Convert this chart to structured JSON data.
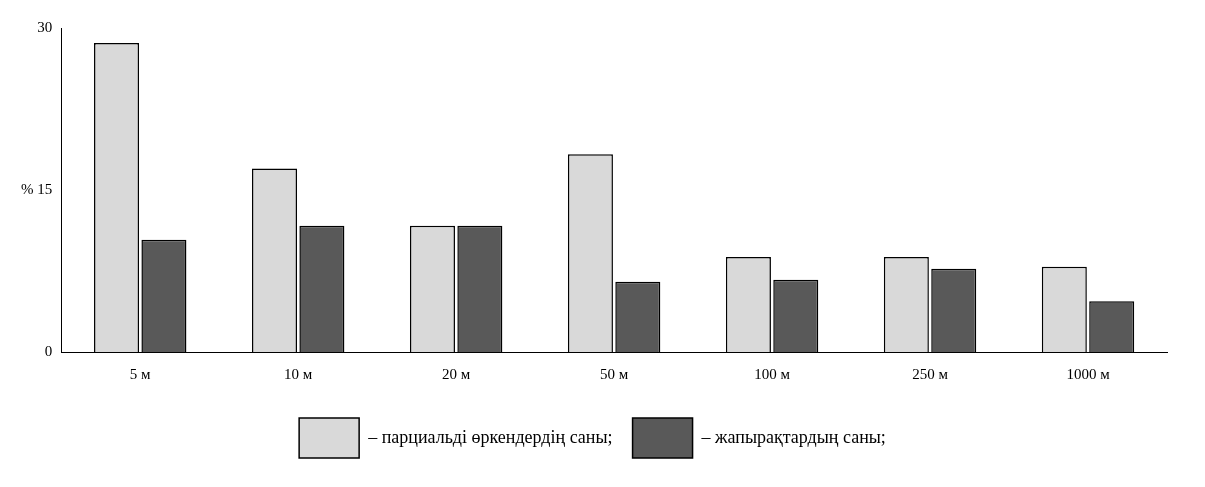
{
  "chart_data": {
    "type": "bar",
    "categories": [
      "5 м",
      "10 м",
      "20 м",
      "50 м",
      "100 м",
      "250 м",
      "1000 м"
    ],
    "series": [
      {
        "name": "– парциальді өркендердің саны;",
        "color": "#d9d9d9",
        "values": [
          28.6,
          17,
          11.7,
          18.3,
          8.8,
          8.8,
          7.9
        ]
      },
      {
        "name": "– жапырақтардың саны;",
        "color": "#595959",
        "values": [
          10.4,
          11.7,
          11.7,
          6.5,
          6.7,
          7.7,
          4.7
        ]
      }
    ],
    "ylim": [
      0,
      30
    ],
    "yticks": [
      {
        "value": 0,
        "label": "0"
      },
      {
        "value": 15,
        "label": "% 15"
      },
      30
    ],
    "grid": false,
    "legend": "bottom"
  }
}
